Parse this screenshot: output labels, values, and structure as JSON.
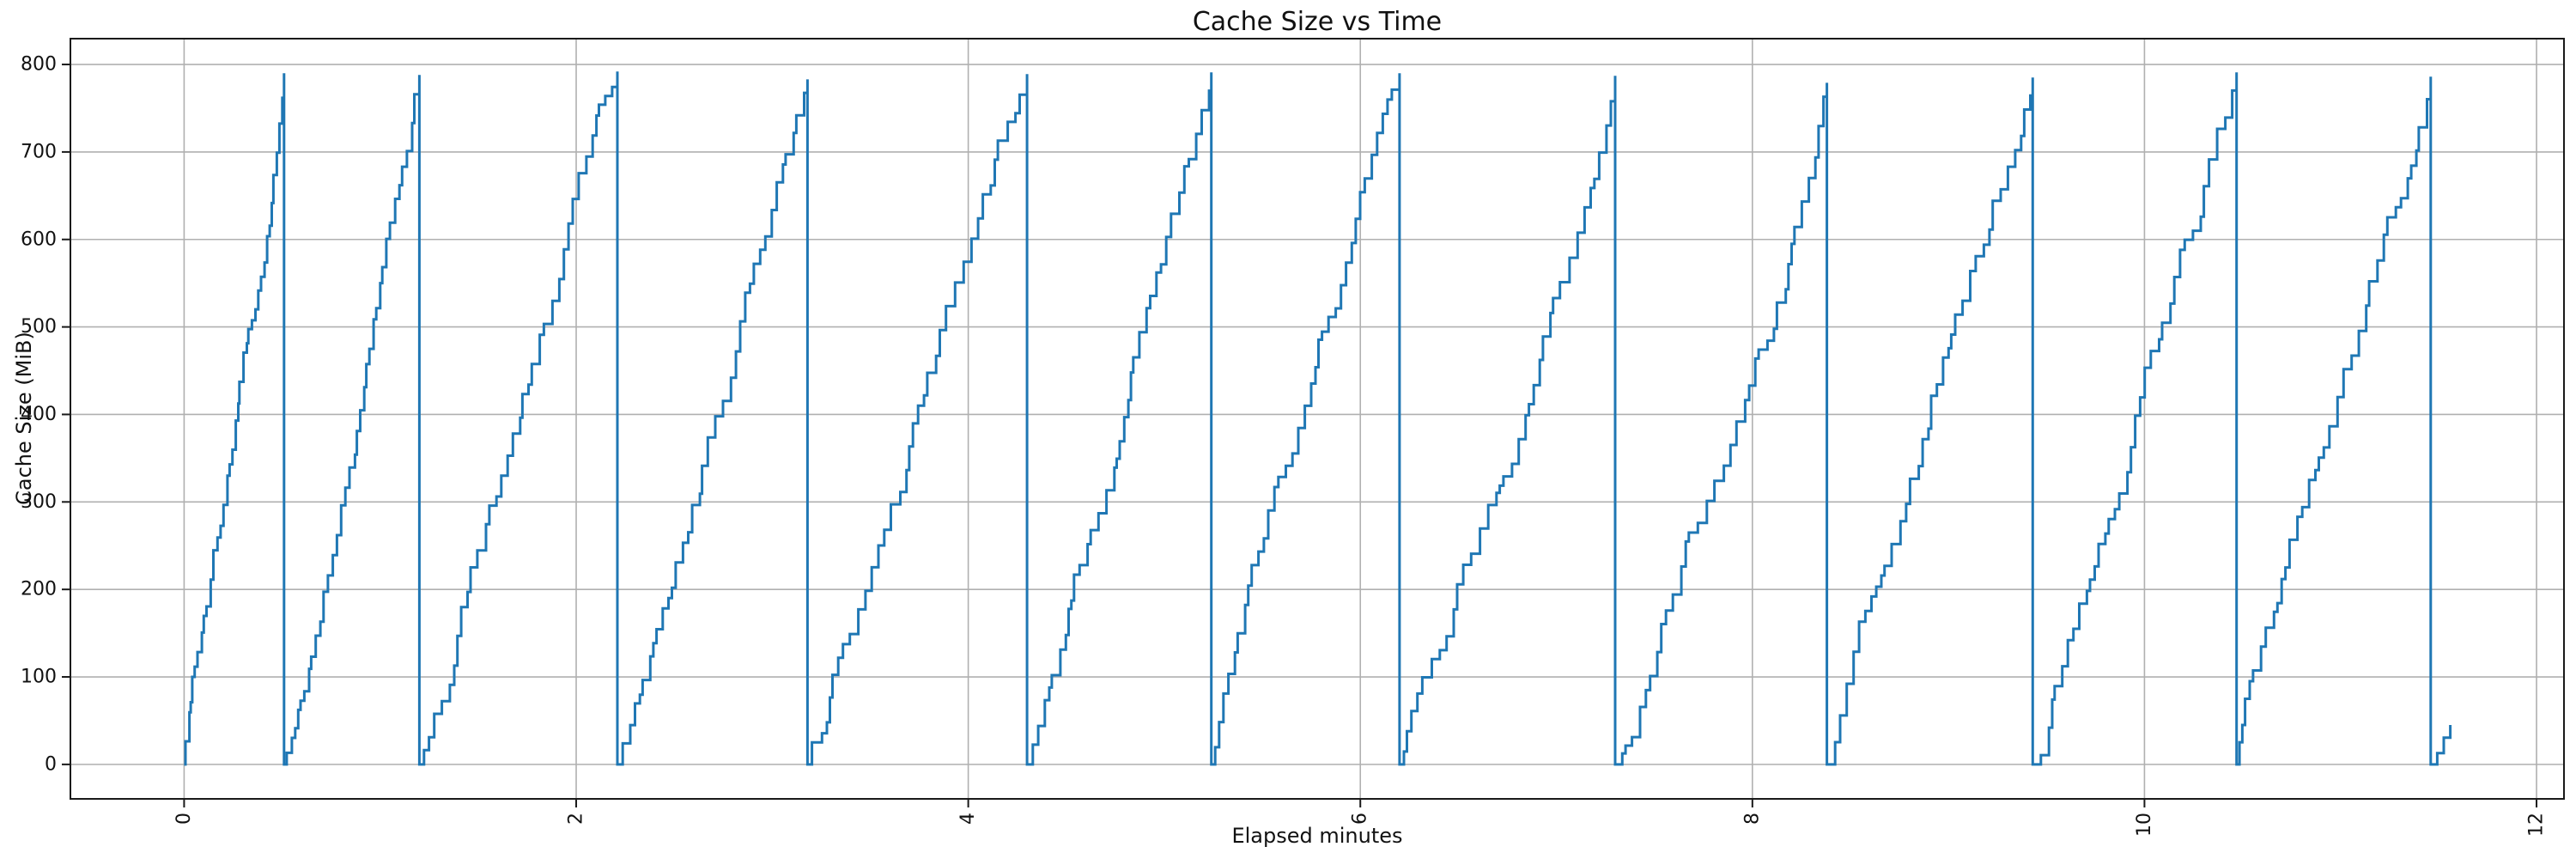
{
  "chart_data": {
    "type": "line",
    "title": "Cache Size vs Time",
    "xlabel": "Elapsed minutes",
    "ylabel": "Cache Size (MiB)",
    "x_ticks": [
      0,
      2,
      4,
      6,
      8,
      10,
      12
    ],
    "y_ticks": [
      0,
      100,
      200,
      300,
      400,
      500,
      600,
      700,
      800
    ],
    "xlim": [
      -0.58,
      12.14
    ],
    "ylim": [
      -39.4,
      829.5
    ],
    "grid": true,
    "legend": "none",
    "x_tick_rotation_deg": -90,
    "line_color": "#1f77b4",
    "grid_color": "#b0b0b0",
    "spine_color": "#1a1a1a",
    "pattern": "sawtooth: stepped (staircase) rise from 0 MiB to ~790 MiB, then instantaneous drop back to 0",
    "cycles": [
      {
        "start": 0.0,
        "end": 0.51,
        "peak": 790
      },
      {
        "start": 0.51,
        "end": 1.2,
        "peak": 788
      },
      {
        "start": 1.2,
        "end": 2.21,
        "peak": 792
      },
      {
        "start": 2.21,
        "end": 3.18,
        "peak": 783
      },
      {
        "start": 3.18,
        "end": 4.3,
        "peak": 789
      },
      {
        "start": 4.3,
        "end": 5.24,
        "peak": 791
      },
      {
        "start": 5.24,
        "end": 6.2,
        "peak": 790
      },
      {
        "start": 6.2,
        "end": 7.3,
        "peak": 787
      },
      {
        "start": 7.3,
        "end": 8.38,
        "peak": 779
      },
      {
        "start": 8.38,
        "end": 9.43,
        "peak": 785
      },
      {
        "start": 9.43,
        "end": 10.47,
        "peak": 791
      },
      {
        "start": 10.47,
        "end": 11.46,
        "peak": 786
      }
    ],
    "final_segment": {
      "start": 11.46,
      "end": 11.56,
      "value": 45
    },
    "steps_per_cycle": 36
  }
}
